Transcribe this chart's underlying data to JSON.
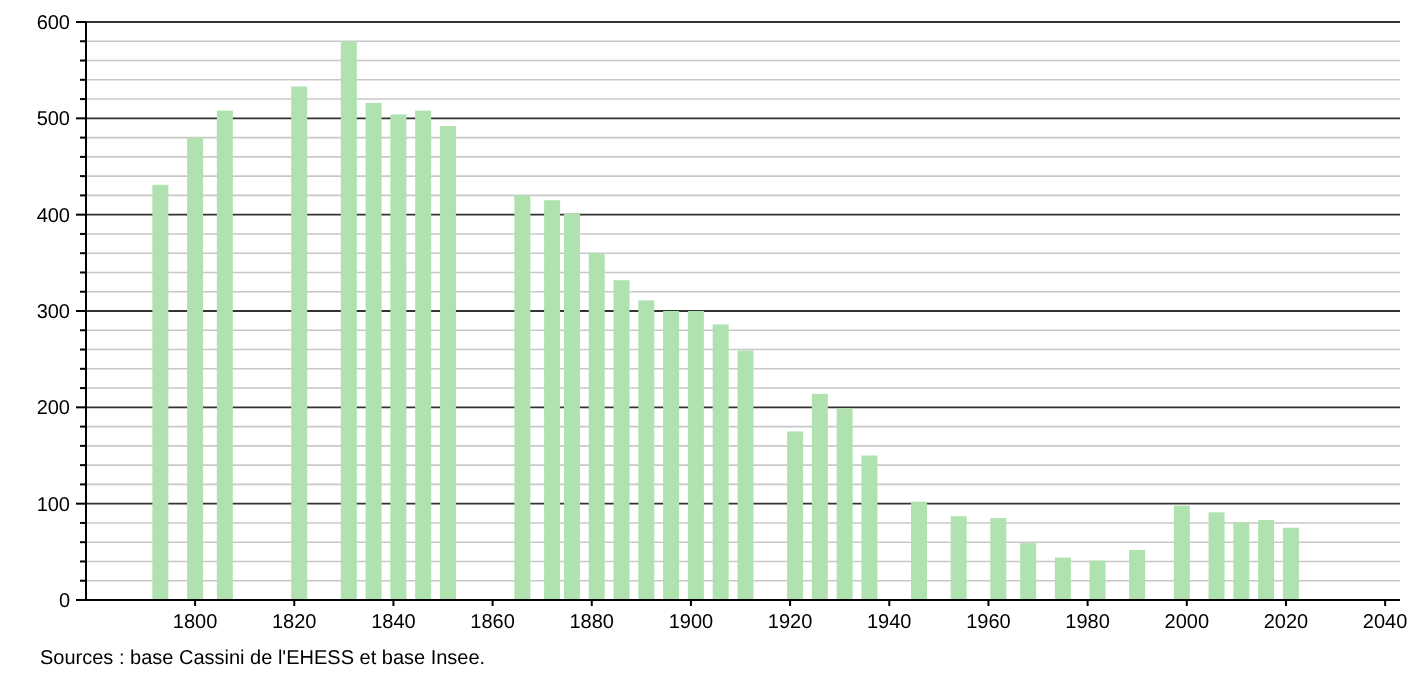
{
  "chart_data": {
    "type": "bar",
    "x": [
      1793,
      1800,
      1806,
      1821,
      1831,
      1836,
      1841,
      1846,
      1851,
      1866,
      1872,
      1876,
      1881,
      1886,
      1891,
      1896,
      1901,
      1906,
      1911,
      1921,
      1926,
      1931,
      1936,
      1946,
      1954,
      1962,
      1968,
      1975,
      1982,
      1990,
      1999,
      2006,
      2011,
      2016,
      2021
    ],
    "values": [
      431,
      480,
      508,
      533,
      580,
      516,
      504,
      508,
      492,
      420,
      415,
      401,
      360,
      332,
      311,
      300,
      300,
      286,
      259,
      175,
      214,
      199,
      150,
      102,
      87,
      85,
      59,
      44,
      41,
      52,
      98,
      91,
      81,
      83,
      75
    ],
    "color": "#b0e2b0",
    "xlim": [
      1778,
      2043
    ],
    "xticks": [
      1800,
      1820,
      1840,
      1860,
      1880,
      1900,
      1920,
      1940,
      1960,
      1980,
      2000,
      2020,
      2040
    ],
    "ylim": [
      0,
      600
    ],
    "yticks": [
      0,
      {
        "value": 20,
        "label": null
      },
      {
        "value": 40,
        "label": null
      },
      {
        "value": 60,
        "label": null
      },
      {
        "value": 80,
        "label": null
      },
      100,
      {
        "value": 120,
        "label": null
      },
      {
        "value": 140,
        "label": null
      },
      {
        "value": 160,
        "label": null
      },
      {
        "value": 180,
        "label": null
      },
      200,
      {
        "value": 220,
        "label": null
      },
      {
        "value": 240,
        "label": null
      },
      {
        "value": 260,
        "label": null
      },
      {
        "value": 280,
        "label": null
      },
      300,
      {
        "value": 320,
        "label": null
      },
      {
        "value": 340,
        "label": null
      },
      {
        "value": 360,
        "label": null
      },
      {
        "value": 380,
        "label": null
      },
      400,
      {
        "value": 420,
        "label": null
      },
      {
        "value": 440,
        "label": null
      },
      {
        "value": 460,
        "label": null
      },
      {
        "value": 480,
        "label": null
      },
      500,
      {
        "value": 520,
        "label": null
      },
      {
        "value": 540,
        "label": null
      },
      {
        "value": 560,
        "label": null
      },
      {
        "value": 580,
        "label": null
      },
      600
    ],
    "grid": true,
    "annotations": [
      "Sources : base Cassini de l'EHESS et base Insee."
    ]
  }
}
